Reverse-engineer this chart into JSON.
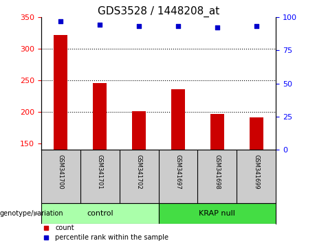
{
  "title": "GDS3528 / 1448208_at",
  "samples": [
    "GSM341700",
    "GSM341701",
    "GSM341702",
    "GSM341697",
    "GSM341698",
    "GSM341699"
  ],
  "bar_values": [
    322,
    246,
    201,
    236,
    197,
    191
  ],
  "percentile_values": [
    97,
    94,
    93,
    93,
    92,
    93
  ],
  "bar_color": "#cc0000",
  "dot_color": "#0000cc",
  "ylim_left": [
    140,
    350
  ],
  "ylim_right": [
    0,
    100
  ],
  "yticks_left": [
    150,
    200,
    250,
    300,
    350
  ],
  "yticks_right": [
    0,
    25,
    50,
    75,
    100
  ],
  "groups": [
    {
      "label": "control",
      "indices": [
        0,
        1,
        2
      ],
      "color": "#aaffaa"
    },
    {
      "label": "KRAP null",
      "indices": [
        3,
        4,
        5
      ],
      "color": "#44dd44"
    }
  ],
  "xlabel_area": "genotype/variation",
  "legend_count_label": "count",
  "legend_percentile_label": "percentile rank within the sample",
  "bg_color": "#ffffff",
  "plot_bg_color": "#ffffff",
  "tick_area_bg": "#cccccc",
  "grid_color": "#000000",
  "title_fontsize": 11,
  "axis_fontsize": 8,
  "bar_width": 0.35
}
